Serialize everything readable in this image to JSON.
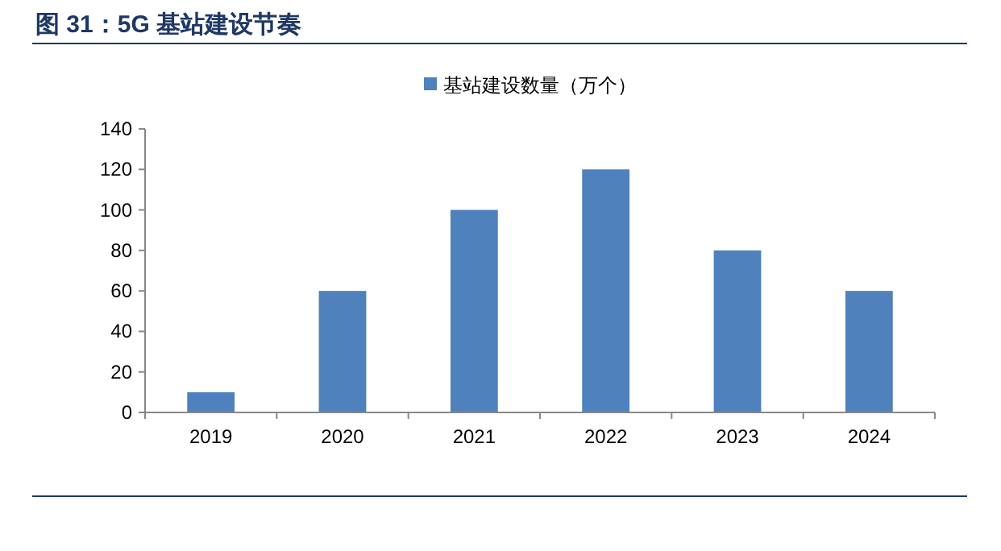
{
  "chart_data": {
    "type": "bar",
    "title": "图 31：5G 基站建设节奏",
    "categories": [
      "2019",
      "2020",
      "2021",
      "2022",
      "2023",
      "2024"
    ],
    "series": [
      {
        "name": "基站建设数量（万个）",
        "color": "#4f81bd",
        "values": [
          10,
          60,
          100,
          120,
          80,
          60
        ]
      }
    ],
    "ylim": [
      0,
      140
    ],
    "yticks": [
      0,
      20,
      40,
      60,
      80,
      100,
      120,
      140
    ],
    "legend": "top",
    "grid": false
  }
}
